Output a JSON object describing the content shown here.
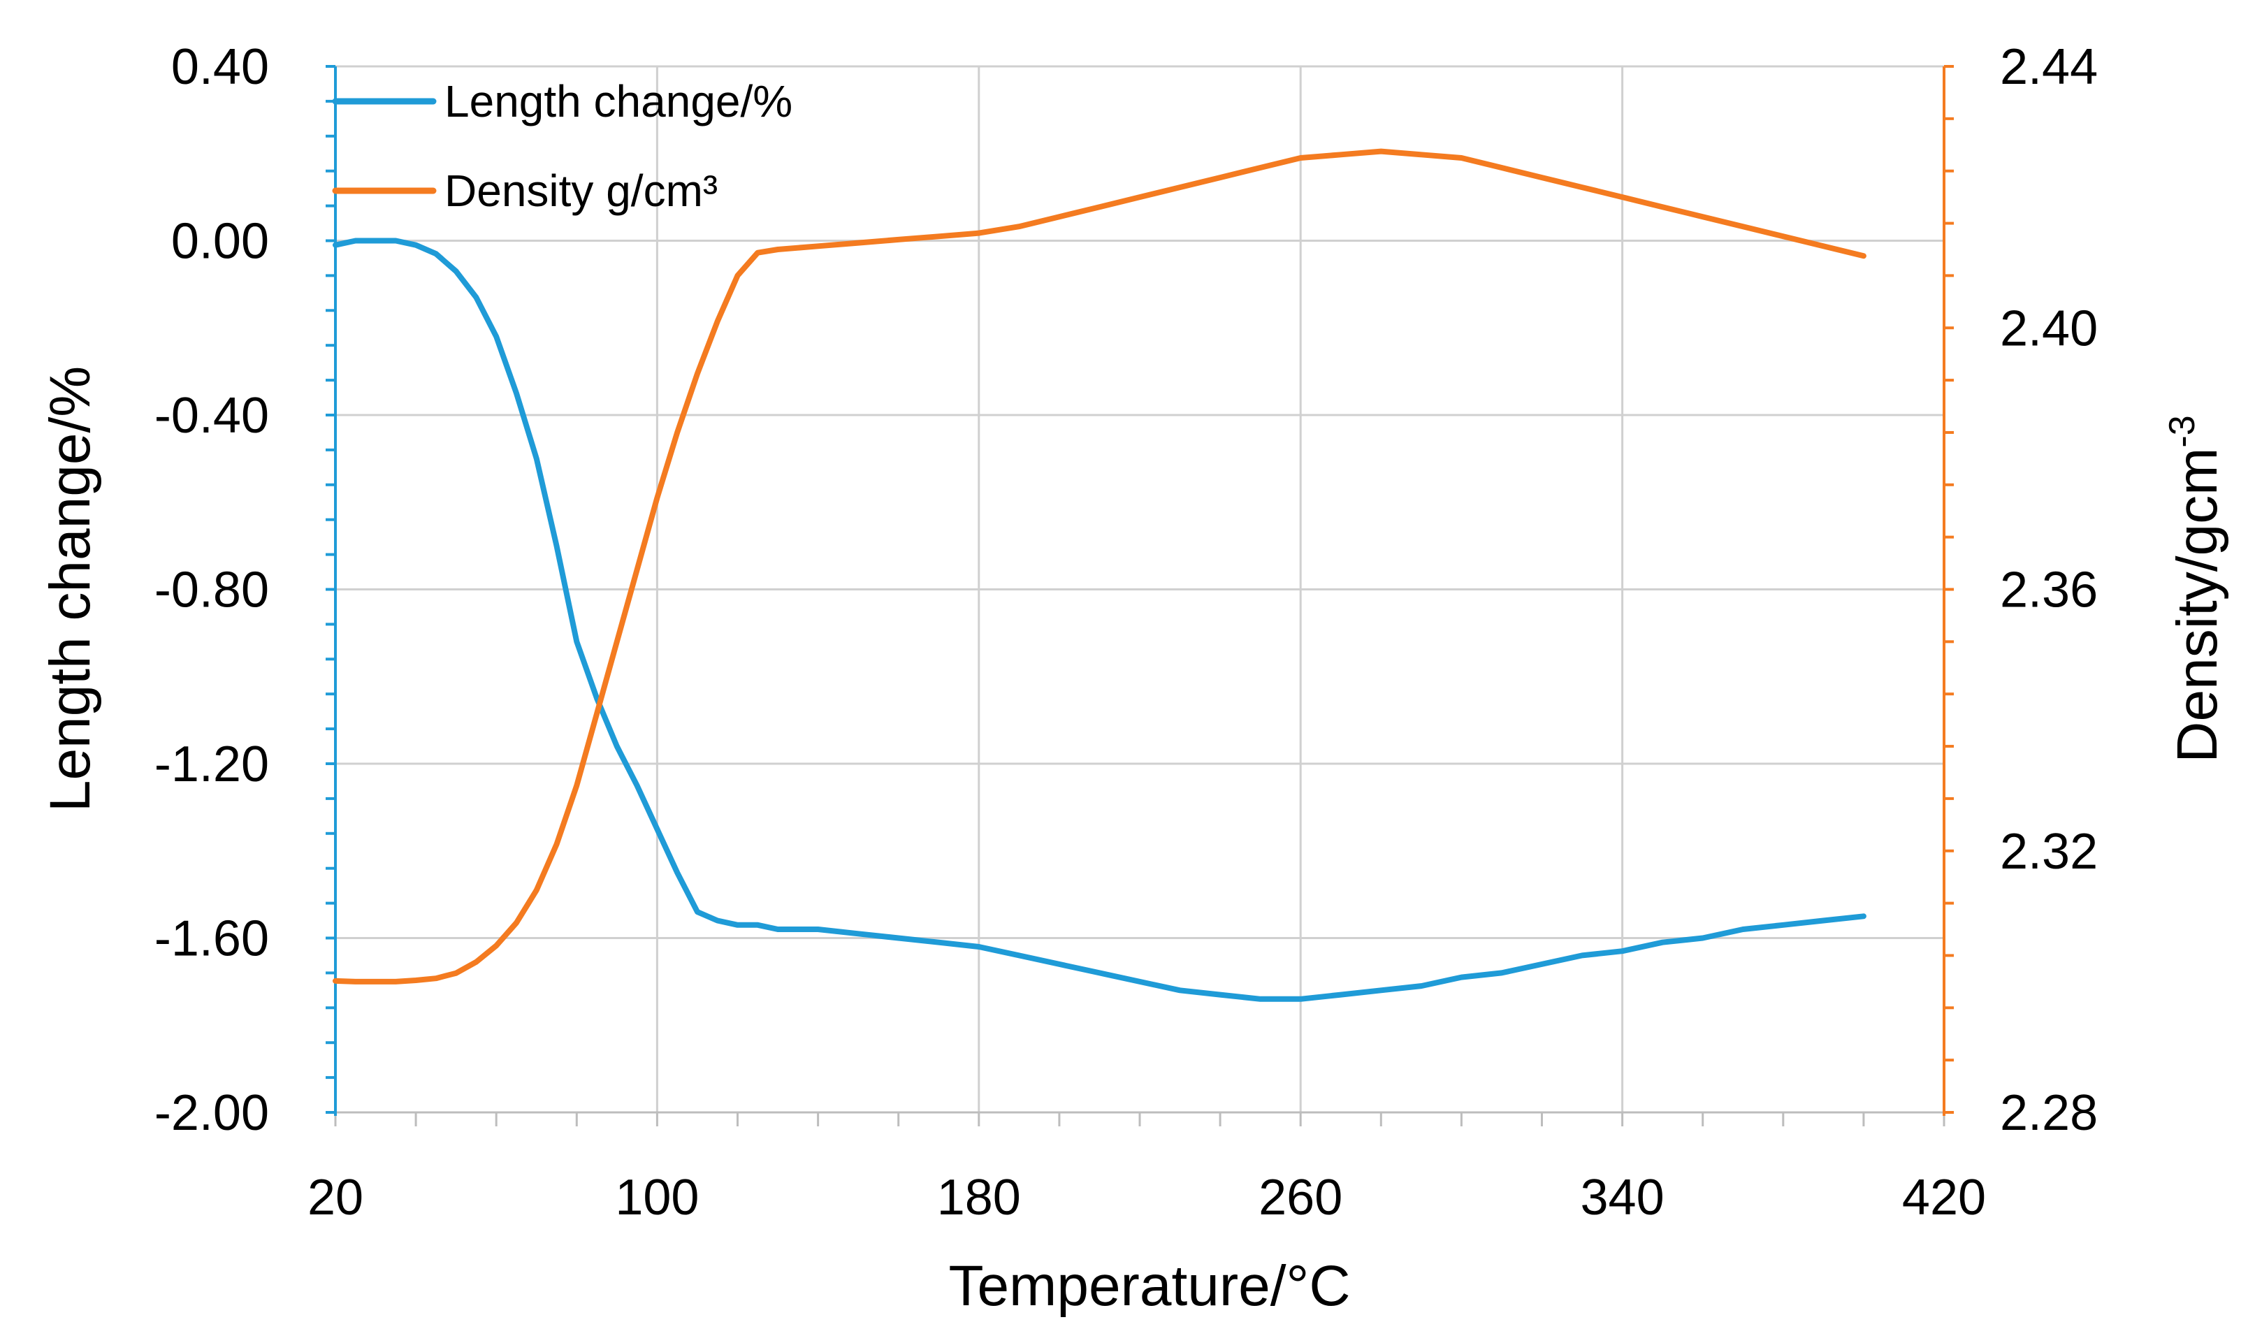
{
  "chart_data": {
    "type": "line",
    "title": "",
    "xlabel": "Temperature/°C",
    "ylabel": "Length change/%",
    "y2label_main": "Density/gcm",
    "y2label_sup": "-3",
    "xlim": [
      20,
      420
    ],
    "ylim": [
      -2.0,
      0.4
    ],
    "y2lim": [
      2.28,
      2.44
    ],
    "grid": true,
    "legend_position": "top-left",
    "x_ticks": [
      20,
      100,
      180,
      260,
      340,
      420
    ],
    "x_tick_labels": [
      "20",
      "100",
      "180",
      "260",
      "340",
      "420"
    ],
    "y_ticks": [
      0.4,
      0.0,
      -0.4,
      -0.8,
      -1.2,
      -1.6,
      -2.0
    ],
    "y_tick_labels": [
      "0.40",
      "0.00",
      "-0.40",
      "-0.80",
      "-1.20",
      "-1.60",
      "-2.00"
    ],
    "y2_ticks": [
      2.44,
      2.4,
      2.36,
      2.32,
      2.28
    ],
    "y2_tick_labels": [
      "2.44",
      "2.40",
      "2.36",
      "2.32",
      "2.28"
    ],
    "colors": {
      "series1": "#1f9bd7",
      "series2": "#f47b20",
      "grid": "#d0d0d0"
    },
    "series": [
      {
        "name": "Length change/%",
        "axis": "left",
        "x": [
          20,
          25,
          30,
          35,
          40,
          45,
          50,
          55,
          60,
          65,
          70,
          75,
          80,
          85,
          90,
          95,
          100,
          105,
          110,
          115,
          120,
          125,
          130,
          140,
          150,
          160,
          170,
          180,
          190,
          200,
          210,
          220,
          230,
          240,
          250,
          260,
          270,
          280,
          290,
          300,
          310,
          320,
          330,
          340,
          350,
          360,
          370,
          380,
          390,
          400
        ],
        "values": [
          -0.01,
          0.0,
          0.0,
          0.0,
          -0.01,
          -0.03,
          -0.07,
          -0.13,
          -0.22,
          -0.35,
          -0.5,
          -0.7,
          -0.92,
          -1.05,
          -1.16,
          -1.25,
          -1.35,
          -1.45,
          -1.54,
          -1.56,
          -1.57,
          -1.57,
          -1.58,
          -1.58,
          -1.59,
          -1.6,
          -1.61,
          -1.62,
          -1.64,
          -1.66,
          -1.68,
          -1.7,
          -1.72,
          -1.73,
          -1.74,
          -1.74,
          -1.73,
          -1.72,
          -1.71,
          -1.69,
          -1.68,
          -1.66,
          -1.64,
          -1.63,
          -1.61,
          -1.6,
          -1.58,
          -1.57,
          -1.56,
          -1.55
        ]
      },
      {
        "name": "Density g/cm³",
        "axis": "right",
        "x": [
          20,
          25,
          30,
          35,
          40,
          45,
          50,
          55,
          60,
          65,
          70,
          75,
          80,
          85,
          90,
          95,
          100,
          105,
          110,
          115,
          120,
          125,
          130,
          140,
          150,
          160,
          170,
          180,
          190,
          200,
          210,
          220,
          230,
          240,
          250,
          260,
          270,
          280,
          290,
          300,
          310,
          320,
          330,
          340,
          350,
          360,
          370,
          380,
          390,
          400
        ],
        "values": [
          2.3001,
          2.3,
          2.3,
          2.3,
          2.3002,
          2.3005,
          2.3013,
          2.303,
          2.3055,
          2.309,
          2.314,
          2.321,
          2.33,
          2.341,
          2.352,
          2.363,
          2.374,
          2.384,
          2.393,
          2.401,
          2.408,
          2.4115,
          2.412,
          2.4125,
          2.413,
          2.4135,
          2.414,
          2.4145,
          2.4155,
          2.417,
          2.4185,
          2.42,
          2.4215,
          2.423,
          2.4245,
          2.426,
          2.4265,
          2.427,
          2.4265,
          2.426,
          2.4245,
          2.423,
          2.4215,
          2.42,
          2.4185,
          2.417,
          2.4155,
          2.414,
          2.4125,
          2.411
        ]
      }
    ]
  }
}
